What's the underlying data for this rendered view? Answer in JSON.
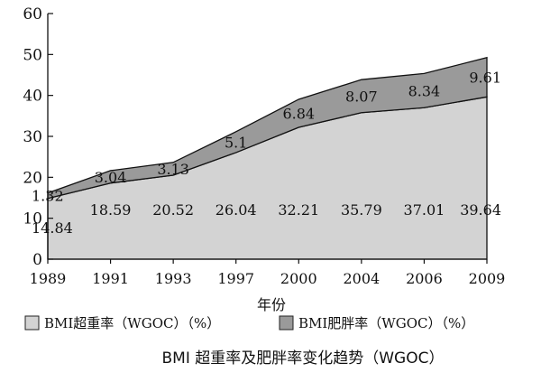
{
  "chart_data": {
    "type": "area",
    "stacked": true,
    "title": "BMI 超重率及肥胖率变化趋势（WGOC）",
    "xlabel": "年份",
    "ylabel": "",
    "x": [
      "1989",
      "1991",
      "1993",
      "1997",
      "2000",
      "2004",
      "2006",
      "2009"
    ],
    "ylim": [
      0,
      60
    ],
    "yticks": [
      "0",
      "10",
      "20",
      "30",
      "40",
      "50",
      "60"
    ],
    "grid": false,
    "legend_position": "bottom",
    "series": [
      {
        "name": "BMI超重率（WGOC）（%）",
        "values": [
          14.84,
          18.59,
          20.52,
          26.04,
          32.21,
          35.79,
          37.01,
          39.64
        ],
        "labels": [
          "14.84",
          "18.59",
          "20.52",
          "26.04",
          "32.21",
          "35.79",
          "37.01",
          "39.64"
        ],
        "color": "#d3d3d3"
      },
      {
        "name": "BMI肥胖率（WGOC）（%）",
        "values": [
          1.32,
          3.04,
          3.13,
          5.1,
          6.84,
          8.07,
          8.34,
          9.61
        ],
        "labels": [
          "1.32",
          "3.04",
          "3.13",
          "5.1",
          "6.84",
          "8.07",
          "8.34",
          "9.61"
        ],
        "color": "#9a9a9a"
      }
    ]
  }
}
